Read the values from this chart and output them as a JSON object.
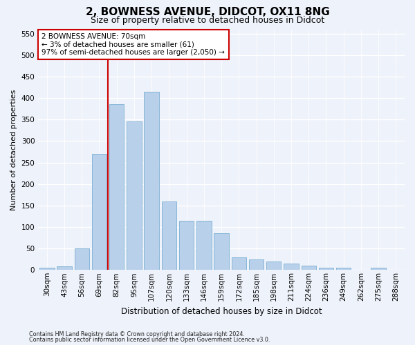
{
  "title1": "2, BOWNESS AVENUE, DIDCOT, OX11 8NG",
  "title2": "Size of property relative to detached houses in Didcot",
  "xlabel": "Distribution of detached houses by size in Didcot",
  "ylabel": "Number of detached properties",
  "categories": [
    "30sqm",
    "43sqm",
    "56sqm",
    "69sqm",
    "82sqm",
    "95sqm",
    "107sqm",
    "120sqm",
    "133sqm",
    "146sqm",
    "159sqm",
    "172sqm",
    "185sqm",
    "198sqm",
    "211sqm",
    "224sqm",
    "236sqm",
    "249sqm",
    "262sqm",
    "275sqm",
    "288sqm"
  ],
  "values": [
    5,
    8,
    50,
    270,
    385,
    345,
    415,
    160,
    115,
    115,
    85,
    30,
    25,
    20,
    15,
    10,
    5,
    5,
    0,
    5,
    0
  ],
  "bar_color": "#b8d0ea",
  "bar_edge_color": "#7aafd4",
  "vline_x_index": 3.5,
  "vline_color": "#cc0000",
  "annotation_text": "2 BOWNESS AVENUE: 70sqm\n← 3% of detached houses are smaller (61)\n97% of semi-detached houses are larger (2,050) →",
  "annotation_box_facecolor": "#ffffff",
  "annotation_box_edgecolor": "#cc0000",
  "ylim": [
    0,
    560
  ],
  "yticks": [
    0,
    50,
    100,
    150,
    200,
    250,
    300,
    350,
    400,
    450,
    500,
    550
  ],
  "footer1": "Contains HM Land Registry data © Crown copyright and database right 2024.",
  "footer2": "Contains public sector information licensed under the Open Government Licence v3.0.",
  "bg_color": "#eef2fa",
  "plot_bg": "#eef2fa",
  "grid_color": "#ffffff",
  "title1_fontsize": 11,
  "title2_fontsize": 9,
  "xlabel_fontsize": 8.5,
  "ylabel_fontsize": 8,
  "tick_fontsize": 7.5,
  "annot_fontsize": 7.5,
  "footer_fontsize": 5.8
}
